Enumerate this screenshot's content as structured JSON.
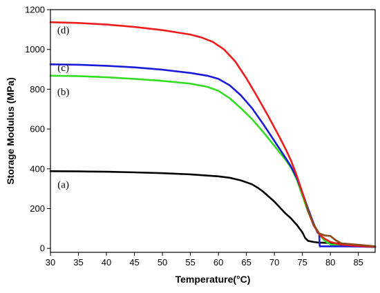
{
  "chart_data": {
    "type": "line",
    "title": "",
    "xlabel": "Temperature(°C)",
    "ylabel": "Storage Modulus (MPa)",
    "xlim": [
      30,
      88
    ],
    "ylim": [
      -20,
      1200
    ],
    "x_ticks": [
      30,
      35,
      40,
      45,
      50,
      55,
      60,
      65,
      70,
      75,
      80,
      85
    ],
    "y_ticks": [
      0,
      200,
      400,
      600,
      800,
      1000,
      1200
    ],
    "grid": false,
    "legend": "none",
    "series": [
      {
        "name": "(a)",
        "color": "#000000",
        "label_at": [
          32.3,
          322
        ],
        "points": [
          [
            30,
            388
          ],
          [
            35,
            387
          ],
          [
            40,
            385
          ],
          [
            45,
            382
          ],
          [
            50,
            378
          ],
          [
            55,
            372
          ],
          [
            60,
            362
          ],
          [
            62,
            355
          ],
          [
            64,
            342
          ],
          [
            66,
            322
          ],
          [
            67,
            305
          ],
          [
            68,
            285
          ],
          [
            69,
            260
          ],
          [
            70,
            235
          ],
          [
            71,
            205
          ],
          [
            72,
            175
          ],
          [
            73,
            150
          ],
          [
            74,
            118
          ],
          [
            75,
            80
          ],
          [
            75.5,
            52
          ],
          [
            76,
            38
          ],
          [
            77,
            32
          ],
          [
            78,
            29
          ],
          [
            80,
            27
          ],
          [
            82,
            24
          ],
          [
            84,
            19
          ],
          [
            86,
            12
          ],
          [
            88,
            8
          ]
        ]
      },
      {
        "name": "(b)",
        "color": "#33dd22",
        "label_at": [
          32.3,
          787
        ],
        "points": [
          [
            30,
            868
          ],
          [
            35,
            866
          ],
          [
            40,
            860
          ],
          [
            45,
            852
          ],
          [
            50,
            842
          ],
          [
            55,
            828
          ],
          [
            58,
            812
          ],
          [
            60,
            792
          ],
          [
            62,
            755
          ],
          [
            64,
            705
          ],
          [
            66,
            650
          ],
          [
            68,
            585
          ],
          [
            70,
            515
          ],
          [
            72,
            445
          ],
          [
            73,
            405
          ],
          [
            74,
            345
          ],
          [
            75,
            265
          ],
          [
            76,
            185
          ],
          [
            77,
            120
          ],
          [
            78,
            70
          ],
          [
            79,
            38
          ],
          [
            80,
            20
          ],
          [
            82,
            14
          ],
          [
            85,
            10
          ],
          [
            88,
            6
          ]
        ]
      },
      {
        "name": "(c)",
        "color": "#1a1ad9",
        "label_at": [
          32.3,
          908
        ],
        "points": [
          [
            30,
            925
          ],
          [
            35,
            923
          ],
          [
            40,
            918
          ],
          [
            45,
            910
          ],
          [
            50,
            898
          ],
          [
            55,
            882
          ],
          [
            58,
            868
          ],
          [
            60,
            852
          ],
          [
            62,
            820
          ],
          [
            64,
            770
          ],
          [
            66,
            705
          ],
          [
            68,
            625
          ],
          [
            70,
            540
          ],
          [
            72,
            455
          ],
          [
            73,
            410
          ],
          [
            74,
            355
          ],
          [
            75,
            280
          ],
          [
            76,
            200
          ],
          [
            77,
            125
          ],
          [
            77.7,
            80
          ],
          [
            78,
            75
          ],
          [
            78.1,
            10
          ],
          [
            79,
            10
          ],
          [
            82,
            10
          ],
          [
            85,
            9
          ],
          [
            88,
            7
          ]
        ]
      },
      {
        "name": "(d)",
        "color": "#ee1c1c",
        "label_at": [
          32.3,
          1098
        ],
        "points": [
          [
            30,
            1137
          ],
          [
            35,
            1133
          ],
          [
            40,
            1125
          ],
          [
            45,
            1113
          ],
          [
            50,
            1097
          ],
          [
            55,
            1075
          ],
          [
            57,
            1060
          ],
          [
            59,
            1038
          ],
          [
            61,
            1000
          ],
          [
            63,
            940
          ],
          [
            65,
            855
          ],
          [
            67,
            760
          ],
          [
            69,
            660
          ],
          [
            71,
            555
          ],
          [
            72,
            500
          ],
          [
            73,
            440
          ],
          [
            74,
            365
          ],
          [
            75,
            280
          ],
          [
            76,
            190
          ],
          [
            77,
            115
          ],
          [
            78,
            70
          ],
          [
            79,
            48
          ],
          [
            80,
            32
          ],
          [
            82,
            18
          ],
          [
            85,
            12
          ],
          [
            88,
            8
          ]
        ]
      },
      {
        "name": "",
        "color": "#8b4a1a",
        "label_at": null,
        "points": [
          [
            75.5,
            240
          ],
          [
            76,
            190
          ],
          [
            77,
            120
          ],
          [
            78,
            75
          ],
          [
            79,
            65
          ],
          [
            80,
            62
          ],
          [
            81,
            40
          ],
          [
            82,
            25
          ],
          [
            85,
            18
          ],
          [
            88,
            10
          ]
        ]
      }
    ]
  }
}
